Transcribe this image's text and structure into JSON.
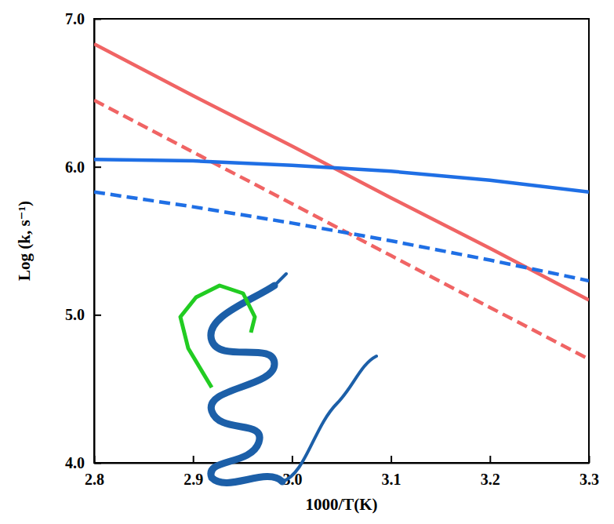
{
  "chart_data": {
    "type": "line",
    "x_label": "1000/T(K)",
    "y_label": "Log (k, s⁻¹)",
    "x": [
      2.8,
      2.9,
      3.0,
      3.1,
      3.2,
      3.3
    ],
    "series": [
      {
        "color": "#f06464",
        "line_style": "solid",
        "values": [
          6.83,
          6.48,
          6.14,
          5.79,
          5.45,
          5.1
        ]
      },
      {
        "color": "#f06464",
        "line_style": "dashed",
        "values": [
          6.45,
          6.1,
          5.75,
          5.4,
          5.05,
          4.7
        ]
      },
      {
        "color": "#1f6fe5",
        "line_style": "solid",
        "values": [
          6.05,
          6.04,
          6.01,
          5.97,
          5.91,
          5.83
        ]
      },
      {
        "color": "#1f6fe5",
        "line_style": "dashed",
        "values": [
          5.83,
          5.73,
          5.62,
          5.5,
          5.37,
          5.23
        ]
      }
    ],
    "xlim": [
      2.8,
      3.3
    ],
    "xticks": [
      2.8,
      2.9,
      {
        "value": 3,
        "label": "3.0"
      },
      3.1,
      3.2,
      3.3
    ],
    "ylim": [
      4,
      7
    ],
    "yticks": [
      {
        "value": 4,
        "label": "4.0"
      },
      {
        "value": 5,
        "label": "5.0"
      },
      {
        "value": 6,
        "label": "6.0"
      },
      {
        "value": 7,
        "label": "7.0"
      }
    ],
    "grid": false
  }
}
